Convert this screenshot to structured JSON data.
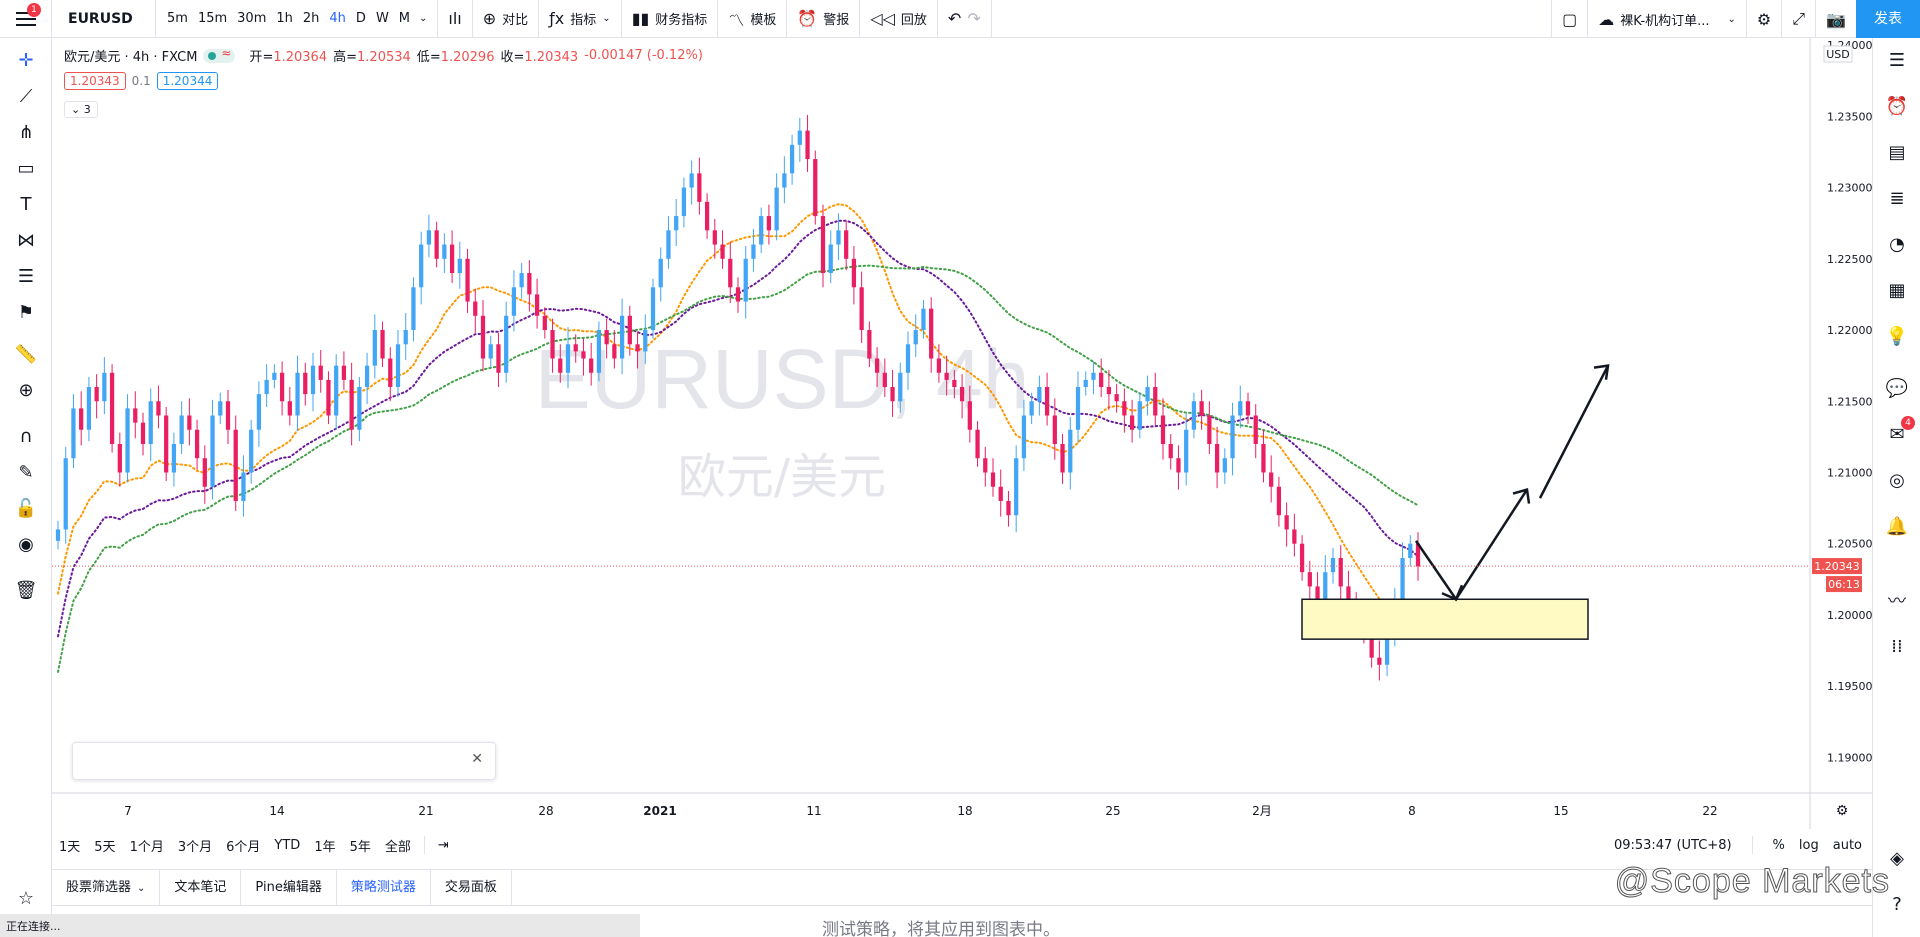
{
  "topbar": {
    "menu_badge": "1",
    "symbol": "EURUSD",
    "intervals": [
      "5m",
      "15m",
      "30m",
      "1h",
      "2h",
      "4h",
      "D",
      "W",
      "M"
    ],
    "active_interval": "4h",
    "compare": "对比",
    "indicators": "指标",
    "financials": "财务指标",
    "templates": "模板",
    "alert": "警报",
    "replay": "回放",
    "layout_name": "裸K-机构订单...",
    "publish": "发表"
  },
  "legend": {
    "title": "欧元/美元 · 4h · FXCM",
    "open_label": "开",
    "open": "1.20364",
    "high_label": "高",
    "high": "1.20534",
    "low_label": "低",
    "low": "1.20296",
    "close_label": "收",
    "close": "1.20343",
    "change": "-0.00147 (-0.12%)",
    "bid": "1.20343",
    "spread": "0.1",
    "ask": "1.20344",
    "collapse": "3"
  },
  "chart_data": {
    "type": "candlestick",
    "symbol_watermark": "EURUSD, 4h",
    "name_watermark": "欧元/美元",
    "currency": "USD",
    "ylim": [
      1.1875,
      1.2405
    ],
    "y_ticks": [
      "1.24000",
      "1.23500",
      "1.23000",
      "1.22500",
      "1.22000",
      "1.21500",
      "1.21000",
      "1.20500",
      "1.20000",
      "1.19500",
      "1.19000"
    ],
    "y_tick_values": [
      1.24,
      1.235,
      1.23,
      1.225,
      1.22,
      1.215,
      1.21,
      1.205,
      1.2,
      1.195,
      1.19
    ],
    "x_ticks": [
      "7",
      "14",
      "21",
      "28",
      "2021",
      "11",
      "18",
      "25",
      "2月",
      "8",
      "15",
      "22"
    ],
    "last_price": "1.20343",
    "last_price_value": 1.20343,
    "countdown": "06:13",
    "colors": {
      "up": "#42a5f5",
      "down": "#e91e63",
      "ma_fast": "#ff9800",
      "ma_mid": "#6a1b9a",
      "ma_slow": "#43a047",
      "zone": "#fff9c4"
    },
    "closes": [
      1.206,
      1.211,
      1.2145,
      1.213,
      1.216,
      1.215,
      1.217,
      1.212,
      1.21,
      1.2145,
      1.2135,
      1.212,
      1.215,
      1.214,
      1.21,
      1.212,
      1.214,
      1.213,
      1.211,
      1.209,
      1.214,
      1.215,
      1.213,
      1.208,
      1.21,
      1.213,
      1.2155,
      1.2165,
      1.217,
      1.215,
      1.214,
      1.217,
      1.2155,
      1.2175,
      1.2165,
      1.214,
      1.2175,
      1.2165,
      1.213,
      1.216,
      1.2175,
      1.22,
      1.218,
      1.216,
      1.219,
      1.22,
      1.223,
      1.226,
      1.227,
      1.225,
      1.226,
      1.224,
      1.225,
      1.222,
      1.221,
      1.218,
      1.219,
      1.217,
      1.221,
      1.223,
      1.224,
      1.2225,
      1.221,
      1.22,
      1.218,
      1.217,
      1.219,
      1.2185,
      1.218,
      1.217,
      1.22,
      1.219,
      1.218,
      1.221,
      1.219,
      1.2185,
      1.22,
      1.223,
      1.225,
      1.227,
      1.228,
      1.23,
      1.231,
      1.229,
      1.227,
      1.226,
      1.225,
      1.223,
      1.222,
      1.225,
      1.226,
      1.228,
      1.227,
      1.23,
      1.231,
      1.233,
      1.234,
      1.232,
      1.228,
      1.224,
      1.226,
      1.227,
      1.225,
      1.223,
      1.22,
      1.218,
      1.217,
      1.216,
      1.215,
      1.217,
      1.219,
      1.22,
      1.2215,
      1.218,
      1.217,
      1.2165,
      1.216,
      1.215,
      1.213,
      1.211,
      1.21,
      1.209,
      1.208,
      1.207,
      1.211,
      1.214,
      1.215,
      1.216,
      1.214,
      1.212,
      1.21,
      1.213,
      1.216,
      1.2165,
      1.217,
      1.216,
      1.2155,
      1.215,
      1.214,
      1.213,
      1.215,
      1.216,
      1.214,
      1.212,
      1.211,
      1.21,
      1.213,
      1.215,
      1.214,
      1.212,
      1.21,
      1.211,
      1.214,
      1.215,
      1.214,
      1.212,
      1.21,
      1.209,
      1.207,
      1.206,
      1.205,
      1.203,
      1.202,
      1.201,
      1.203,
      1.204,
      1.202,
      1.201,
      1.2,
      1.199,
      1.197,
      1.1965,
      1.199,
      1.201,
      1.204,
      1.205,
      1.2034
    ],
    "annotation_zone": {
      "price_top": 1.2011,
      "price_bottom": 1.1983
    },
    "arrow_path_prices": [
      1.2052,
      1.2011,
      1.2088,
      1.2082,
      1.2175
    ]
  },
  "rangebar": {
    "ranges": [
      "1天",
      "5天",
      "1个月",
      "3个月",
      "6个月",
      "YTD",
      "1年",
      "5年",
      "全部"
    ],
    "time": "09:53:47 (UTC+8)",
    "percent": "%",
    "log": "log",
    "auto": "auto"
  },
  "bottom": {
    "tabs": [
      "股票筛选器",
      "文本笔记",
      "Pine编辑器",
      "策略测试器",
      "交易面板"
    ],
    "active_tab": "策略测试器",
    "message": "测试策略，将其应用到图表中。",
    "status": "正在连接..."
  },
  "watermark": "@Scope Markets"
}
